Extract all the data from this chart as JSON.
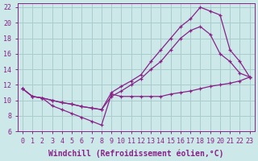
{
  "bg_color": "#cce8e8",
  "grid_color": "#aacccc",
  "line_color": "#882288",
  "xlabel": "Windchill (Refroidissement éolien,°C)",
  "xlim": [
    -0.5,
    23.5
  ],
  "ylim": [
    6,
    22.5
  ],
  "xticks": [
    0,
    1,
    2,
    3,
    4,
    5,
    6,
    7,
    8,
    9,
    10,
    11,
    12,
    13,
    14,
    15,
    16,
    17,
    18,
    19,
    20,
    21,
    22,
    23
  ],
  "yticks": [
    6,
    8,
    10,
    12,
    14,
    16,
    18,
    20,
    22
  ],
  "curve1_x": [
    0,
    1,
    2,
    3,
    4,
    5,
    6,
    7,
    8,
    9,
    10,
    11,
    12,
    13,
    14,
    15,
    16,
    17,
    18,
    19,
    20,
    21,
    22,
    23
  ],
  "curve1_y": [
    11.5,
    10.5,
    10.3,
    10.0,
    9.7,
    9.5,
    9.2,
    9.0,
    8.8,
    11.0,
    11.8,
    12.5,
    13.3,
    15.0,
    16.5,
    18.0,
    19.5,
    20.5,
    22.0,
    21.5,
    21.0,
    16.5,
    15.0,
    13.0
  ],
  "curve2_x": [
    0,
    1,
    2,
    3,
    4,
    5,
    6,
    7,
    8,
    9,
    10,
    11,
    12,
    13,
    14,
    15,
    16,
    17,
    18,
    19,
    20,
    21,
    22,
    23
  ],
  "curve2_y": [
    11.5,
    10.5,
    10.3,
    10.0,
    9.7,
    9.5,
    9.2,
    9.0,
    8.8,
    10.5,
    11.2,
    12.0,
    12.8,
    14.0,
    15.0,
    16.5,
    18.0,
    19.0,
    19.5,
    18.5,
    16.0,
    15.0,
    13.5,
    13.0
  ],
  "curve3_x": [
    0,
    1,
    2,
    3,
    4,
    5,
    6,
    7,
    8,
    9,
    10,
    11,
    12,
    13,
    14,
    15,
    16,
    17,
    18,
    19,
    20,
    21,
    22,
    23
  ],
  "curve3_y": [
    11.5,
    10.5,
    10.3,
    9.3,
    8.8,
    8.3,
    7.8,
    7.3,
    6.8,
    10.8,
    10.5,
    10.5,
    10.5,
    10.5,
    10.5,
    10.8,
    11.0,
    11.2,
    11.5,
    11.8,
    12.0,
    12.2,
    12.5,
    13.0
  ],
  "font_size_label": 7,
  "font_size_tick": 6,
  "marker_size": 3.5,
  "linewidth": 0.9
}
